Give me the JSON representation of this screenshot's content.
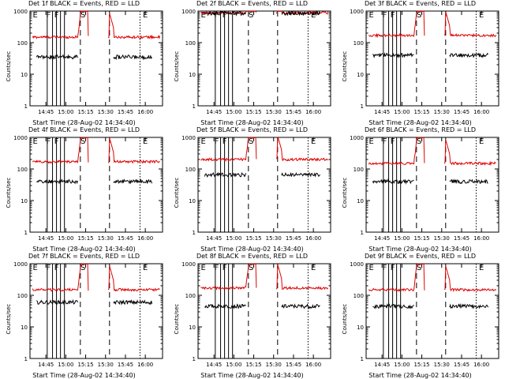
{
  "chart_data": [
    {
      "type": "line",
      "title": "Det 1f BLACK = Events, RED = LLD",
      "ylabel": "Counts/sec",
      "xlabel": "Start Time (28-Aug-02 14:34:40)",
      "yscale": "log",
      "ylim": [
        1,
        1000
      ],
      "yticks": [
        "1",
        "10",
        "100",
        "1000"
      ],
      "xticks": [
        "14:45",
        "15:00",
        "15:15",
        "15:30",
        "15:45",
        "16:00"
      ],
      "xlim_minutes": [
        0,
        100
      ],
      "markers": [
        {
          "label": "E",
          "t": 4
        },
        {
          "label": "F",
          "t": 14
        },
        {
          "label": "F",
          "t": 20
        },
        {
          "label": "S",
          "t": 40
        },
        {
          "label": "E",
          "t": 87
        }
      ],
      "series": [
        {
          "name": "Events",
          "color": "#000000",
          "level": 35
        },
        {
          "name": "LLD",
          "color": "#e00000",
          "level": 150
        }
      ]
    },
    {
      "type": "line",
      "title": "Det 2f BLACK = Events, RED = LLD",
      "ylabel": "Counts/sec",
      "xlabel": "Start Time (28-Aug-02 14:34:40)",
      "yscale": "log",
      "ylim": [
        1,
        1000
      ],
      "yticks": [
        "1",
        "10",
        "100",
        "1000"
      ],
      "xticks": [
        "14:45",
        "15:00",
        "15:15",
        "15:30",
        "15:45",
        "16:00"
      ],
      "xlim_minutes": [
        0,
        100
      ],
      "markers": [
        {
          "label": "E",
          "t": 4
        },
        {
          "label": "F",
          "t": 14
        },
        {
          "label": "F",
          "t": 20
        },
        {
          "label": "S",
          "t": 40
        },
        {
          "label": "E",
          "t": 87
        }
      ],
      "series": [
        {
          "name": "Events",
          "color": "#000000",
          "level": 850
        },
        {
          "name": "LLD",
          "color": "#e00000",
          "level": 880
        }
      ]
    },
    {
      "type": "line",
      "title": "Det 3f BLACK = Events, RED = LLD",
      "ylabel": "Counts/sec",
      "xlabel": "Start Time (28-Aug-02 14:34:40)",
      "yscale": "log",
      "ylim": [
        1,
        1000
      ],
      "yticks": [
        "1",
        "10",
        "100",
        "1000"
      ],
      "xticks": [
        "14:45",
        "15:00",
        "15:15",
        "15:30",
        "15:45",
        "16:00"
      ],
      "xlim_minutes": [
        0,
        100
      ],
      "markers": [
        {
          "label": "E",
          "t": 4
        },
        {
          "label": "F",
          "t": 14
        },
        {
          "label": "F",
          "t": 20
        },
        {
          "label": "S",
          "t": 40
        },
        {
          "label": "E",
          "t": 87
        }
      ],
      "series": [
        {
          "name": "Events",
          "color": "#000000",
          "level": 40
        },
        {
          "name": "LLD",
          "color": "#e00000",
          "level": 170
        }
      ]
    },
    {
      "type": "line",
      "title": "Det 4f BLACK = Events, RED = LLD",
      "ylabel": "Counts/sec",
      "xlabel": "Start Time (28-Aug-02 14:34:40)",
      "yscale": "log",
      "ylim": [
        1,
        1000
      ],
      "yticks": [
        "1",
        "10",
        "100",
        "1000"
      ],
      "xticks": [
        "14:45",
        "15:00",
        "15:15",
        "15:30",
        "15:45",
        "16:00"
      ],
      "xlim_minutes": [
        0,
        100
      ],
      "markers": [
        {
          "label": "E",
          "t": 4
        },
        {
          "label": "F",
          "t": 14
        },
        {
          "label": "F",
          "t": 20
        },
        {
          "label": "S",
          "t": 40
        },
        {
          "label": "E",
          "t": 87
        }
      ],
      "series": [
        {
          "name": "Events",
          "color": "#000000",
          "level": 40
        },
        {
          "name": "LLD",
          "color": "#e00000",
          "level": 170
        }
      ]
    },
    {
      "type": "line",
      "title": "Det 5f BLACK = Events, RED = LLD",
      "ylabel": "Counts/sec",
      "xlabel": "Start Time (28-Aug-02 14:34:40)",
      "yscale": "log",
      "ylim": [
        1,
        1000
      ],
      "yticks": [
        "1",
        "10",
        "100",
        "1000"
      ],
      "xticks": [
        "14:45",
        "15:00",
        "15:15",
        "15:30",
        "15:45",
        "16:00"
      ],
      "xlim_minutes": [
        0,
        100
      ],
      "markers": [
        {
          "label": "E",
          "t": 4
        },
        {
          "label": "F",
          "t": 14
        },
        {
          "label": "F",
          "t": 20
        },
        {
          "label": "S",
          "t": 40
        },
        {
          "label": "E",
          "t": 87
        }
      ],
      "series": [
        {
          "name": "Events",
          "color": "#000000",
          "level": 65
        },
        {
          "name": "LLD",
          "color": "#e00000",
          "level": 200
        }
      ]
    },
    {
      "type": "line",
      "title": "Det 6f BLACK = Events, RED = LLD",
      "ylabel": "Counts/sec",
      "xlabel": "Start Time (28-Aug-02 14:34:40)",
      "yscale": "log",
      "ylim": [
        1,
        1000
      ],
      "yticks": [
        "1",
        "10",
        "100",
        "1000"
      ],
      "xticks": [
        "14:45",
        "15:00",
        "15:15",
        "15:30",
        "15:45",
        "16:00"
      ],
      "xlim_minutes": [
        0,
        100
      ],
      "markers": [
        {
          "label": "E",
          "t": 4
        },
        {
          "label": "F",
          "t": 14
        },
        {
          "label": "F",
          "t": 20
        },
        {
          "label": "S",
          "t": 40
        },
        {
          "label": "E",
          "t": 87
        }
      ],
      "series": [
        {
          "name": "Events",
          "color": "#000000",
          "level": 40
        },
        {
          "name": "LLD",
          "color": "#e00000",
          "level": 150
        }
      ]
    },
    {
      "type": "line",
      "title": "Det 7f BLACK = Events, RED = LLD",
      "ylabel": "Counts/sec",
      "xlabel": "Start Time (28-Aug-02 14:34:40)",
      "yscale": "log",
      "ylim": [
        1,
        1000
      ],
      "yticks": [
        "1",
        "10",
        "100",
        "1000"
      ],
      "xticks": [
        "14:45",
        "15:00",
        "15:15",
        "15:30",
        "15:45",
        "16:00"
      ],
      "xlim_minutes": [
        0,
        100
      ],
      "markers": [
        {
          "label": "E",
          "t": 4
        },
        {
          "label": "F",
          "t": 14
        },
        {
          "label": "F",
          "t": 20
        },
        {
          "label": "S",
          "t": 40
        },
        {
          "label": "E",
          "t": 87
        }
      ],
      "series": [
        {
          "name": "Events",
          "color": "#000000",
          "level": 60
        },
        {
          "name": "LLD",
          "color": "#e00000",
          "level": 150
        }
      ]
    },
    {
      "type": "line",
      "title": "Det 8f BLACK = Events, RED = LLD",
      "ylabel": "Counts/sec",
      "xlabel": "Start Time (28-Aug-02 14:34:40)",
      "yscale": "log",
      "ylim": [
        1,
        1000
      ],
      "yticks": [
        "1",
        "10",
        "100",
        "1000"
      ],
      "xticks": [
        "14:45",
        "15:00",
        "15:15",
        "15:30",
        "15:45",
        "16:00"
      ],
      "xlim_minutes": [
        0,
        100
      ],
      "markers": [
        {
          "label": "E",
          "t": 4
        },
        {
          "label": "F",
          "t": 14
        },
        {
          "label": "F",
          "t": 20
        },
        {
          "label": "S",
          "t": 40
        },
        {
          "label": "E",
          "t": 87
        }
      ],
      "series": [
        {
          "name": "Events",
          "color": "#000000",
          "level": 45
        },
        {
          "name": "LLD",
          "color": "#e00000",
          "level": 170
        }
      ]
    },
    {
      "type": "line",
      "title": "Det 9f BLACK = Events, RED = LLD",
      "ylabel": "Counts/sec",
      "xlabel": "Start Time (28-Aug-02 14:34:40)",
      "yscale": "log",
      "ylim": [
        1,
        1000
      ],
      "yticks": [
        "1",
        "10",
        "100",
        "1000"
      ],
      "xticks": [
        "14:45",
        "15:00",
        "15:15",
        "15:30",
        "15:45",
        "16:00"
      ],
      "xlim_minutes": [
        0,
        100
      ],
      "markers": [
        {
          "label": "E",
          "t": 4
        },
        {
          "label": "F",
          "t": 14
        },
        {
          "label": "F",
          "t": 20
        },
        {
          "label": "S",
          "t": 40
        },
        {
          "label": "E",
          "t": 87
        }
      ],
      "series": [
        {
          "name": "Events",
          "color": "#000000",
          "level": 45
        },
        {
          "name": "LLD",
          "color": "#e00000",
          "level": 150
        }
      ]
    }
  ]
}
